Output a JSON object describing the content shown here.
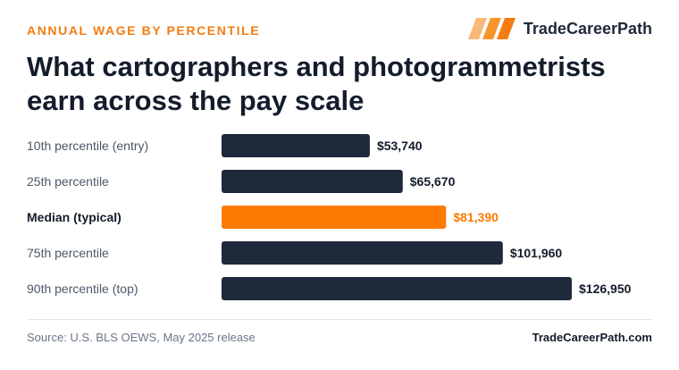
{
  "header": {
    "eyebrow": "ANNUAL WAGE BY PERCENTILE",
    "brand_name": "TradeCareerPath",
    "logo_icon": "striped-parallelogram-logo-icon",
    "title": "What cartographers and photogrammetrists earn across the pay scale"
  },
  "colors": {
    "accent": "#f47c12",
    "bar": "#1e2a3b",
    "highlight": "#ff7a00",
    "text_muted": "#4d5868"
  },
  "chart_data": {
    "type": "bar",
    "orientation": "horizontal",
    "title": "",
    "xlabel": "",
    "ylabel": "",
    "xlim": [
      0,
      126950
    ],
    "grid": false,
    "categories": [
      "10th percentile (entry)",
      "25th percentile",
      "Median (typical)",
      "75th percentile",
      "90th percentile (top)"
    ],
    "values": [
      53740,
      65670,
      81390,
      101960,
      126950
    ],
    "value_labels": [
      "$53,740",
      "$65,670",
      "$81,390",
      "$101,960",
      "$126,950"
    ],
    "highlight_category": "Median (typical)"
  },
  "footer": {
    "source": "Source: U.S. BLS OEWS, May 2025 release",
    "brand_url": "TradeCareerPath.com"
  }
}
